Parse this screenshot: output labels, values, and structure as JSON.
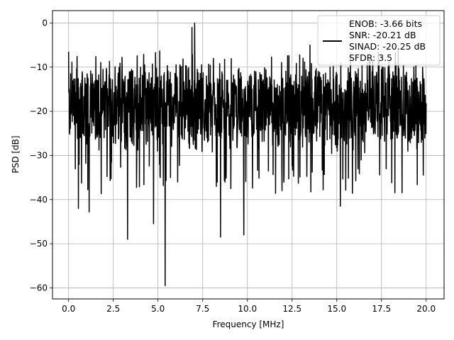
{
  "chart_data": {
    "type": "line",
    "xlabel": "Frequency [MHz]",
    "ylabel": "PSD [dB]",
    "xlim": [
      -0.9,
      21.0
    ],
    "ylim": [
      -62.5,
      2.8
    ],
    "xticks": [
      0.0,
      2.5,
      5.0,
      7.5,
      10.0,
      12.5,
      15.0,
      17.5,
      20.0
    ],
    "xtick_labels": [
      "0.0",
      "2.5",
      "5.0",
      "7.5",
      "10.0",
      "12.5",
      "15.0",
      "17.5",
      "20.0"
    ],
    "yticks": [
      0,
      -10,
      -20,
      -30,
      -40,
      -50,
      -60
    ],
    "ytick_labels": [
      "0",
      "−10",
      "−20",
      "−30",
      "−40",
      "−50",
      "−60"
    ],
    "grid": true,
    "legend_location": "top-right",
    "line_color": "#000000",
    "series": [
      {
        "legend_lines": [
          "ENOB: -3.66 bits",
          "SNR: -20.21 dB",
          "SINAD: -20.25 dB",
          "SFDR: 3.5"
        ],
        "x_range": [
          0.0,
          20.0
        ],
        "typical_band_db": [
          -28,
          -10
        ],
        "notable_points": [
          {
            "x": 0.0,
            "y": -6.5
          },
          {
            "x": 0.55,
            "y": -42.0
          },
          {
            "x": 1.15,
            "y": -42.8
          },
          {
            "x": 3.3,
            "y": -49.0
          },
          {
            "x": 4.75,
            "y": -45.5
          },
          {
            "x": 5.4,
            "y": -59.5
          },
          {
            "x": 6.9,
            "y": -1.0
          },
          {
            "x": 7.05,
            "y": 0.0
          },
          {
            "x": 8.5,
            "y": -48.5
          },
          {
            "x": 9.8,
            "y": -48.0
          },
          {
            "x": 15.2,
            "y": -41.5
          },
          {
            "x": 13.5,
            "y": -5.0
          }
        ]
      }
    ]
  }
}
